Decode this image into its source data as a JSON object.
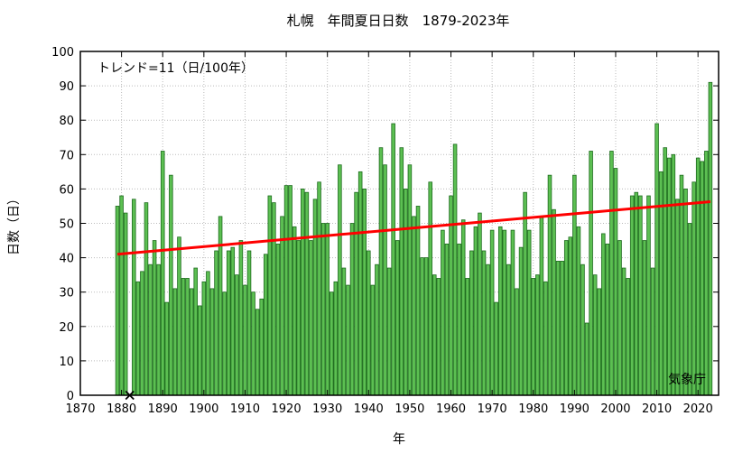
{
  "chart_data": {
    "type": "bar",
    "title": "札幌　年間夏日日数　1879-2023年",
    "xlabel": "年",
    "ylabel": "日数（日）",
    "trend_text": "トレンド=11（日/100年）",
    "source_text": "気象庁",
    "xlim": [
      1870,
      2025
    ],
    "ylim": [
      0,
      100
    ],
    "xticks": [
      1870,
      1880,
      1890,
      1900,
      1910,
      1920,
      1930,
      1940,
      1950,
      1960,
      1970,
      1980,
      1990,
      2000,
      2010,
      2020
    ],
    "yticks": [
      0,
      10,
      20,
      30,
      40,
      50,
      60,
      70,
      80,
      90,
      100
    ],
    "grid": true,
    "colors": {
      "bar_fill": "#5cbf52",
      "bar_edge": "#1d6b1d",
      "trend": "#ff0000",
      "grid": "#bbbbbb",
      "missing_marker": "#000000"
    },
    "start_year": 1879,
    "values": [
      55,
      58,
      53,
      null,
      57,
      33,
      36,
      56,
      38,
      45,
      38,
      71,
      27,
      64,
      31,
      46,
      34,
      34,
      31,
      37,
      26,
      33,
      36,
      31,
      42,
      52,
      30,
      42,
      43,
      35,
      45,
      32,
      42,
      30,
      25,
      28,
      41,
      58,
      56,
      44,
      52,
      61,
      61,
      49,
      45,
      60,
      59,
      45,
      57,
      62,
      50,
      50,
      30,
      33,
      67,
      37,
      32,
      50,
      59,
      65,
      60,
      42,
      32,
      38,
      72,
      67,
      37,
      79,
      45,
      72,
      60,
      67,
      52,
      55,
      40,
      40,
      62,
      35,
      34,
      48,
      44,
      58,
      73,
      44,
      51,
      34,
      42,
      49,
      53,
      42,
      38,
      48,
      27,
      49,
      48,
      38,
      48,
      31,
      43,
      59,
      48,
      34,
      35,
      52,
      33,
      64,
      54,
      39,
      39,
      45,
      46,
      64,
      49,
      38,
      21,
      71,
      35,
      31,
      47,
      44,
      71,
      66,
      45,
      37,
      34,
      58,
      59,
      58,
      45,
      58,
      37,
      79,
      65,
      72,
      69,
      70,
      57,
      64,
      60,
      50,
      62,
      69,
      68,
      71,
      91
    ],
    "missing_years": [
      1882
    ],
    "trend_line": {
      "x": [
        1879,
        2023
      ],
      "y": [
        41,
        56.3
      ]
    }
  }
}
